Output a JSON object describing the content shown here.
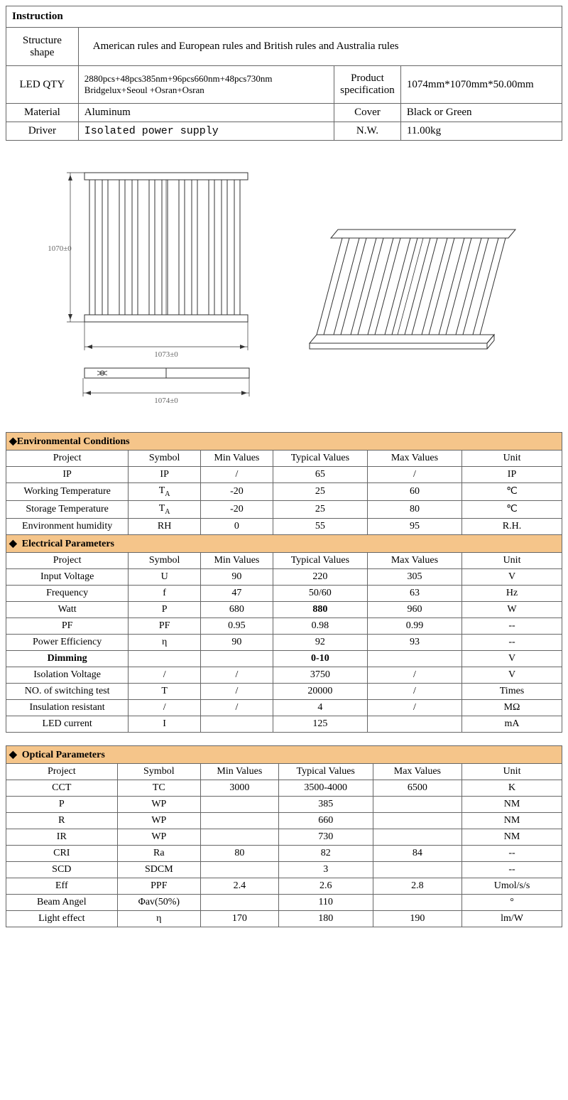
{
  "instruction": {
    "title": "Instruction",
    "rows": {
      "structure_shape_label": "Structure shape",
      "structure_shape_value": "American rules and European rules and British rules and Australia rules",
      "led_qty_label": "LED QTY",
      "led_qty_value_line1": "2880pcs+48pcs385nm+96pcs660nm+48pcs730nm",
      "led_qty_value_line2": "Bridgelux+Seoul +Osran+Osran",
      "product_spec_label": "Product specification",
      "product_spec_value": "1074mm*1070mm*50.00mm",
      "material_label": "Material",
      "material_value": "Aluminum",
      "cover_label": "Cover",
      "cover_value": "Black or Green",
      "driver_label": "Driver",
      "driver_value": "Isolated power supply",
      "nw_label": "N.W.",
      "nw_value": "11.00kg"
    }
  },
  "drawings": {
    "dim_height": "1070±0",
    "dim_width1": "1073±0",
    "dim_width2": "1074±0",
    "line_color": "#333333",
    "text_color": "#666666",
    "font_size": 11
  },
  "env": {
    "title": "Environmental Conditions",
    "headers": [
      "Project",
      "Symbol",
      "Min Values",
      "Typical Values",
      "Max Values",
      "Unit"
    ],
    "rows": [
      [
        "IP",
        "IP",
        "/",
        "65",
        "/",
        "IP"
      ],
      [
        "Working Temperature",
        "T_A",
        "-20",
        "25",
        "60",
        "℃"
      ],
      [
        "Storage Temperature",
        "T_A",
        "-20",
        "25",
        "80",
        "℃"
      ],
      [
        "Environment humidity",
        "RH",
        "0",
        "55",
        "95",
        "R.H."
      ]
    ]
  },
  "elec": {
    "title": "Electrical Parameters",
    "headers": [
      "Project",
      "Symbol",
      "Min Values",
      "Typical Values",
      "Max Values",
      "Unit"
    ],
    "rows": [
      {
        "cells": [
          "Input Voltage",
          "U",
          "90",
          "220",
          "305",
          "V"
        ]
      },
      {
        "cells": [
          "Frequency",
          "f",
          "47",
          "50/60",
          "63",
          "Hz"
        ]
      },
      {
        "cells": [
          "Watt",
          "P",
          "680",
          "880",
          "960",
          "W"
        ],
        "bold_typical": true
      },
      {
        "cells": [
          "PF",
          "PF",
          "0.95",
          "0.98",
          "0.99",
          "--"
        ]
      },
      {
        "cells": [
          "Power Efficiency",
          "η",
          "90",
          "92",
          "93",
          "--"
        ]
      },
      {
        "cells": [
          "Dimming",
          "",
          "",
          "0-10",
          "",
          "V"
        ],
        "bold_project": true,
        "bold_typical": true
      },
      {
        "cells": [
          "Isolation Voltage",
          "/",
          "/",
          "3750",
          "/",
          "V"
        ]
      },
      {
        "cells": [
          "NO. of switching   test",
          "T",
          "/",
          "20000",
          "/",
          "Times"
        ]
      },
      {
        "cells": [
          "Insulation resistant",
          "/",
          "/",
          "4",
          "/",
          "MΩ"
        ]
      },
      {
        "cells": [
          "LED current",
          "I",
          "",
          "125",
          "",
          "mA"
        ]
      }
    ]
  },
  "optical": {
    "title": "Optical Parameters",
    "headers": [
      "Project",
      "Symbol",
      "Min Values",
      "Typical Values",
      "Max Values",
      "Unit"
    ],
    "rows": [
      [
        "CCT",
        "TC",
        "3000",
        "3500-4000",
        "6500",
        "K"
      ],
      [
        "P",
        "WP",
        "",
        "385",
        "",
        "NM"
      ],
      [
        "R",
        "WP",
        "",
        "660",
        "",
        "NM"
      ],
      [
        "IR",
        "WP",
        "",
        "730",
        "",
        "NM"
      ],
      [
        "CRI",
        "Ra",
        "80",
        "82",
        "84",
        "--"
      ],
      [
        "SCD",
        "SDCM",
        "",
        "3",
        "",
        "--"
      ],
      [
        "Eff",
        "PPF",
        "2.4",
        "2.6",
        "2.8",
        "Umol/s/s"
      ],
      [
        "Beam Angel",
        "Φav(50%)",
        "",
        "110",
        "",
        "°"
      ],
      [
        "Light effect",
        "η",
        "170",
        "180",
        "190",
        "lm/W"
      ]
    ]
  },
  "colors": {
    "section_bg": "#f5c58a",
    "border": "#666666"
  },
  "col_widths": [
    "22%",
    "13%",
    "13%",
    "17%",
    "17%",
    "18%"
  ]
}
